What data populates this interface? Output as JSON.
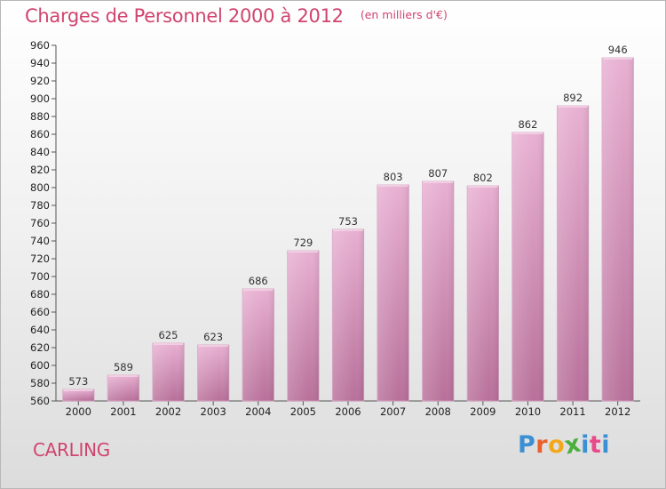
{
  "title": "Charges de Personnel 2000 à 2012",
  "unit_note": "(en milliers d'€)",
  "location": "CARLING",
  "logo": {
    "text": "Proxiti",
    "letter_colors": [
      "#3b8fd4",
      "#e8602c",
      "#f2a81d",
      "#4caf3e",
      "#3b8fd4",
      "#e84a8a"
    ]
  },
  "colors": {
    "bar_light": "#e8b0d2",
    "bar_dark": "#b8709a",
    "title": "#d0446f"
  },
  "chart_data": {
    "type": "bar",
    "categories": [
      "2000",
      "2001",
      "2002",
      "2003",
      "2004",
      "2005",
      "2006",
      "2007",
      "2008",
      "2009",
      "2010",
      "2011",
      "2012"
    ],
    "values": [
      573,
      589,
      625,
      623,
      686,
      729,
      753,
      803,
      807,
      802,
      862,
      892,
      946
    ],
    "title": "Charges de Personnel 2000 à 2012",
    "subtitle": "(en milliers d'€)",
    "xlabel": "",
    "ylabel": "",
    "ylim": [
      560,
      960
    ],
    "yticks": [
      560,
      580,
      600,
      620,
      640,
      660,
      680,
      700,
      720,
      740,
      760,
      780,
      800,
      820,
      840,
      860,
      880,
      900,
      920,
      940,
      960
    ],
    "grid": false,
    "legend": "none"
  }
}
